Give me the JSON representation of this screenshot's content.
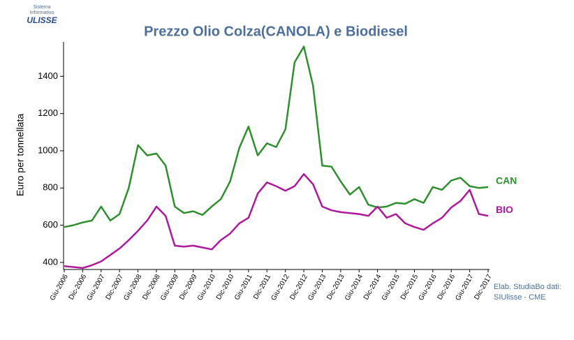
{
  "chart_data": {
    "type": "line",
    "title": "Prezzo Olio Colza(CANOLA) e Biodiesel",
    "y_label": "Euro per tonnellata",
    "logo": [
      "Sistema",
      "Informativo",
      "ULISSE"
    ],
    "note": [
      "Elab. StudiaBo dati:",
      "SIUlisse - CME"
    ],
    "categories": [
      "Giu-2006",
      null,
      "Dic-2006",
      null,
      "Giu-2007",
      null,
      "Dic-2007",
      null,
      "Giu-2008",
      null,
      "Dic-2008",
      null,
      "Giu-2009",
      null,
      "Dic-2009",
      null,
      "Giu-2010",
      null,
      "Dic-2010",
      null,
      "Giu-2011",
      null,
      "Dic-2011",
      null,
      "Giu-2012",
      null,
      "Dic-2012",
      null,
      "Giu-2013",
      null,
      "Dic-2013",
      null,
      "Giu-2014",
      null,
      "Dic-2014",
      null,
      "Giu-2015",
      null,
      "Dic-2015",
      null,
      "Giu-2016",
      null,
      "Dic-2016",
      null,
      "Giu-2017",
      null,
      "Dic-2017"
    ],
    "series": [
      {
        "name": "CAN",
        "color": "#2e8f2e",
        "values": [
          590,
          600,
          615,
          625,
          700,
          625,
          660,
          800,
          1030,
          975,
          985,
          920,
          700,
          665,
          675,
          655,
          700,
          740,
          835,
          1015,
          1130,
          975,
          1040,
          1020,
          1115,
          1475,
          1560,
          1350,
          920,
          915,
          835,
          765,
          805,
          710,
          695,
          700,
          720,
          715,
          740,
          720,
          805,
          790,
          840,
          855,
          810,
          800,
          805
        ]
      },
      {
        "name": "BIO",
        "color": "#b0189b",
        "values": [
          380,
          375,
          370,
          385,
          405,
          440,
          475,
          520,
          570,
          625,
          700,
          650,
          490,
          485,
          490,
          480,
          470,
          520,
          555,
          610,
          640,
          770,
          830,
          810,
          785,
          810,
          875,
          820,
          700,
          680,
          670,
          665,
          660,
          650,
          700,
          640,
          660,
          610,
          590,
          575,
          610,
          640,
          695,
          730,
          790,
          660,
          650
        ]
      }
    ],
    "ylim": [
      362,
      1585
    ],
    "yticks": [
      400,
      600,
      800,
      1000,
      1200,
      1400
    ]
  }
}
